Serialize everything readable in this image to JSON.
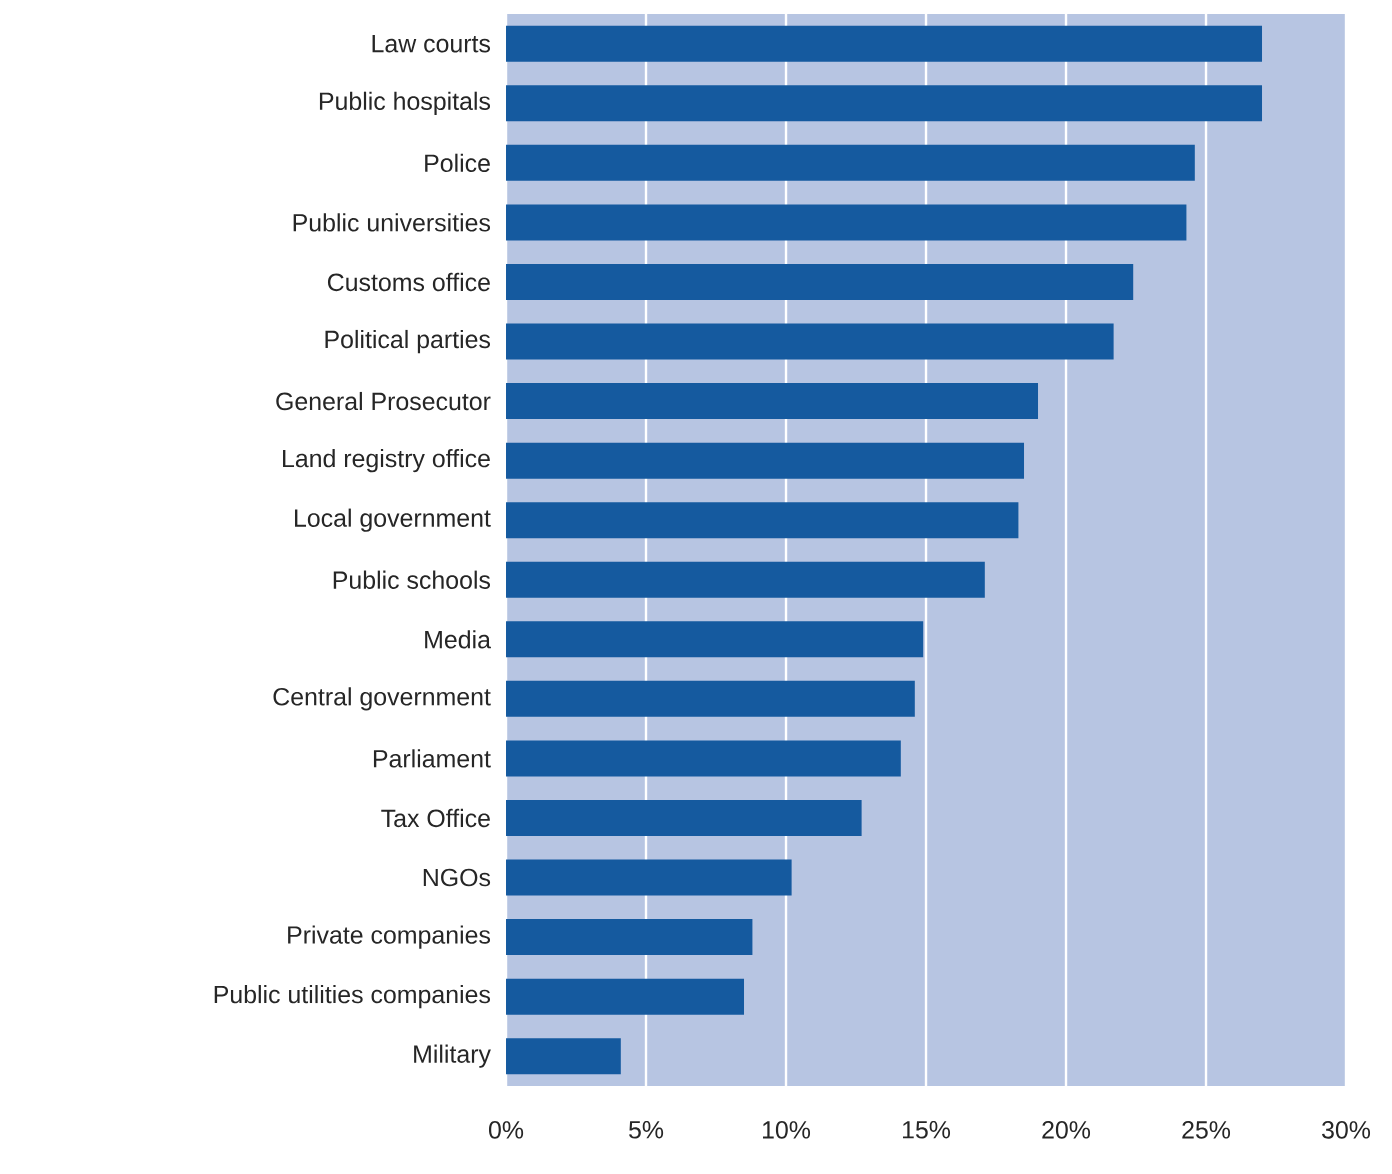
{
  "chart_data": {
    "type": "bar",
    "orientation": "horizontal",
    "color": "#155a9f",
    "grid": "x",
    "categories": [
      "Law courts",
      "Public hospitals",
      "Police",
      "Public universities",
      "Customs office",
      "Political parties",
      "General Prosecutor",
      "Land registry office",
      "Local government",
      "Public schools",
      "Media",
      "Central government",
      "Parliament",
      "Tax Office",
      "NGOs",
      "Private companies",
      "Public utilities companies",
      "Military"
    ],
    "values": [
      27.0,
      27.0,
      24.6,
      24.3,
      22.4,
      21.7,
      19.0,
      18.5,
      18.3,
      17.1,
      14.9,
      14.6,
      14.1,
      12.7,
      10.2,
      8.8,
      8.5,
      4.1
    ],
    "xlim": [
      0,
      30
    ],
    "xticks": [
      {
        "value": 0,
        "label": "0%"
      },
      {
        "value": 5,
        "label": "5%"
      },
      {
        "value": 10,
        "label": "10%"
      },
      {
        "value": 15,
        "label": "15%"
      },
      {
        "value": 20,
        "label": "20%"
      },
      {
        "value": 25,
        "label": "25%"
      },
      {
        "value": 30,
        "label": "30%"
      }
    ]
  }
}
